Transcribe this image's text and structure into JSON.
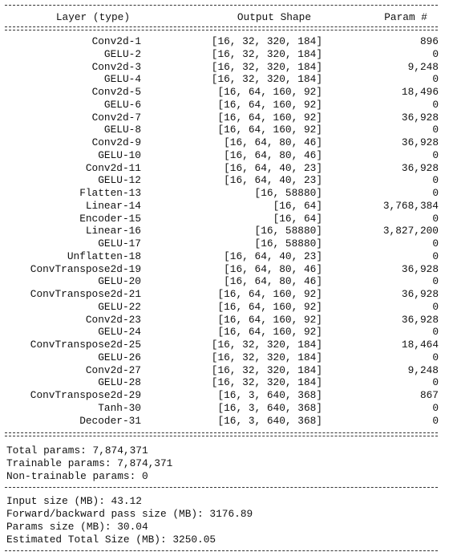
{
  "header": {
    "layer": "Layer (type)",
    "shape": "Output Shape",
    "param": "Param #"
  },
  "rows": [
    {
      "layer": "Conv2d-1",
      "shape": "[16, 32, 320, 184]",
      "param": "896"
    },
    {
      "layer": "GELU-2",
      "shape": "[16, 32, 320, 184]",
      "param": "0"
    },
    {
      "layer": "Conv2d-3",
      "shape": "[16, 32, 320, 184]",
      "param": "9,248"
    },
    {
      "layer": "GELU-4",
      "shape": "[16, 32, 320, 184]",
      "param": "0"
    },
    {
      "layer": "Conv2d-5",
      "shape": "[16, 64, 160, 92]",
      "param": "18,496"
    },
    {
      "layer": "GELU-6",
      "shape": "[16, 64, 160, 92]",
      "param": "0"
    },
    {
      "layer": "Conv2d-7",
      "shape": "[16, 64, 160, 92]",
      "param": "36,928"
    },
    {
      "layer": "GELU-8",
      "shape": "[16, 64, 160, 92]",
      "param": "0"
    },
    {
      "layer": "Conv2d-9",
      "shape": "[16, 64, 80, 46]",
      "param": "36,928"
    },
    {
      "layer": "GELU-10",
      "shape": "[16, 64, 80, 46]",
      "param": "0"
    },
    {
      "layer": "Conv2d-11",
      "shape": "[16, 64, 40, 23]",
      "param": "36,928"
    },
    {
      "layer": "GELU-12",
      "shape": "[16, 64, 40, 23]",
      "param": "0"
    },
    {
      "layer": "Flatten-13",
      "shape": "[16, 58880]",
      "param": "0"
    },
    {
      "layer": "Linear-14",
      "shape": "[16, 64]",
      "param": "3,768,384"
    },
    {
      "layer": "Encoder-15",
      "shape": "[16, 64]",
      "param": "0"
    },
    {
      "layer": "Linear-16",
      "shape": "[16, 58880]",
      "param": "3,827,200"
    },
    {
      "layer": "GELU-17",
      "shape": "[16, 58880]",
      "param": "0"
    },
    {
      "layer": "Unflatten-18",
      "shape": "[16, 64, 40, 23]",
      "param": "0"
    },
    {
      "layer": "ConvTranspose2d-19",
      "shape": "[16, 64, 80, 46]",
      "param": "36,928"
    },
    {
      "layer": "GELU-20",
      "shape": "[16, 64, 80, 46]",
      "param": "0"
    },
    {
      "layer": "ConvTranspose2d-21",
      "shape": "[16, 64, 160, 92]",
      "param": "36,928"
    },
    {
      "layer": "GELU-22",
      "shape": "[16, 64, 160, 92]",
      "param": "0"
    },
    {
      "layer": "Conv2d-23",
      "shape": "[16, 64, 160, 92]",
      "param": "36,928"
    },
    {
      "layer": "GELU-24",
      "shape": "[16, 64, 160, 92]",
      "param": "0"
    },
    {
      "layer": "ConvTranspose2d-25",
      "shape": "[16, 32, 320, 184]",
      "param": "18,464"
    },
    {
      "layer": "GELU-26",
      "shape": "[16, 32, 320, 184]",
      "param": "0"
    },
    {
      "layer": "Conv2d-27",
      "shape": "[16, 32, 320, 184]",
      "param": "9,248"
    },
    {
      "layer": "GELU-28",
      "shape": "[16, 32, 320, 184]",
      "param": "0"
    },
    {
      "layer": "ConvTranspose2d-29",
      "shape": "[16, 3, 640, 368]",
      "param": "867"
    },
    {
      "layer": "Tanh-30",
      "shape": "[16, 3, 640, 368]",
      "param": "0"
    },
    {
      "layer": "Decoder-31",
      "shape": "[16, 3, 640, 368]",
      "param": "0"
    }
  ],
  "params": {
    "total": "Total params: 7,874,371",
    "trainable": "Trainable params: 7,874,371",
    "non_trainable": "Non-trainable params: 0"
  },
  "sizes": {
    "input": "Input size (MB): 43.12",
    "forward_backward": "Forward/backward pass size (MB): 3176.89",
    "params": "Params size (MB): 30.04",
    "total": "Estimated Total Size (MB): 3250.05"
  }
}
